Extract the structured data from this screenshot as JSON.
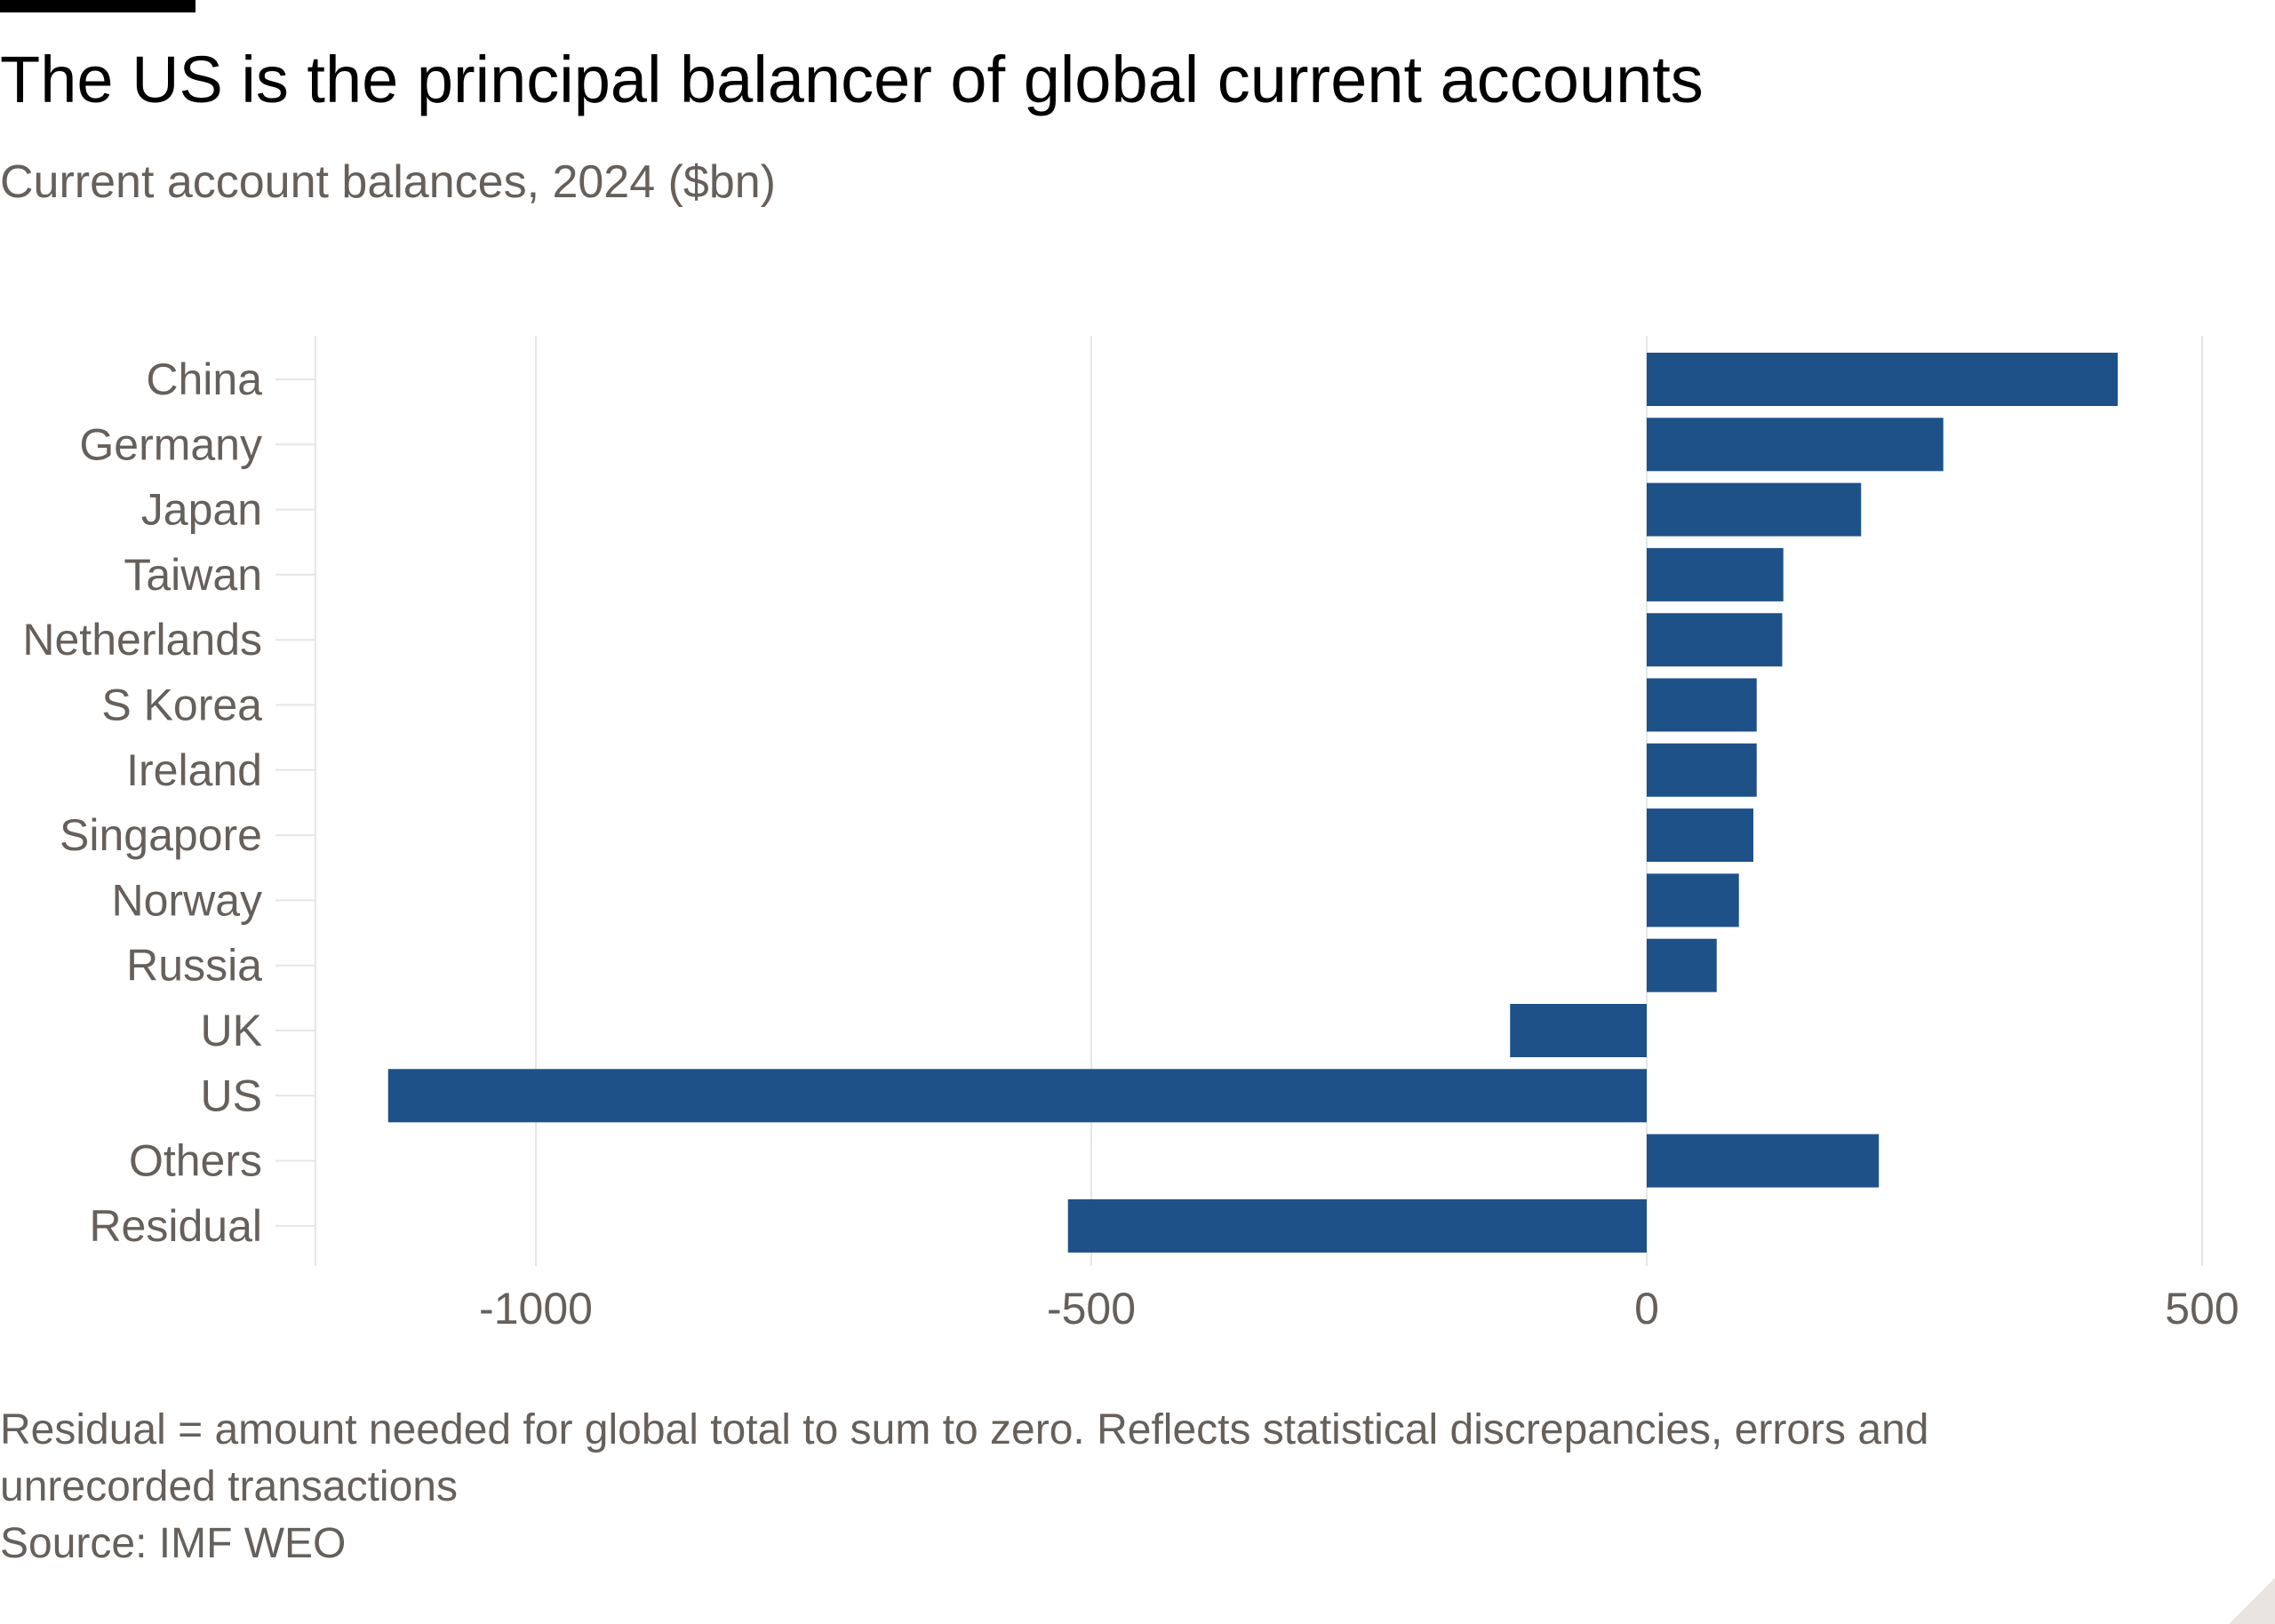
{
  "header": {
    "title": "The US is the principal balancer of global current accounts",
    "subtitle": "Current account balances, 2024 ($bn)"
  },
  "footer": {
    "note": "Residual = amount needed for global total to sum to zero. Reflects statistical discrepancies, errors and unrecorded transactions",
    "source": "Source: IMF WEO"
  },
  "colors": {
    "bar": "#1f5189",
    "grid": "#e6e6e6",
    "tick_text": "#66605c",
    "title": "#000000"
  },
  "chart_data": {
    "type": "bar",
    "orientation": "horizontal",
    "categories": [
      "China",
      "Germany",
      "Japan",
      "Taiwan",
      "Netherlands",
      "S Korea",
      "Ireland",
      "Singapore",
      "Norway",
      "Russia",
      "UK",
      "US",
      "Others",
      "Residual"
    ],
    "values": [
      424,
      267,
      193,
      123,
      122,
      99,
      99,
      96,
      83,
      63,
      -123,
      -1133,
      209,
      -521
    ],
    "xlim": [
      -1200,
      500
    ],
    "xticks": [
      -1000,
      -500,
      0,
      500
    ],
    "xtick_labels": [
      "-1000",
      "-500",
      "0",
      "500"
    ],
    "grid": true,
    "title": "The US is the principal balancer of global current accounts",
    "subtitle": "Current account balances, 2024 ($bn)",
    "xlabel": "",
    "ylabel": ""
  }
}
